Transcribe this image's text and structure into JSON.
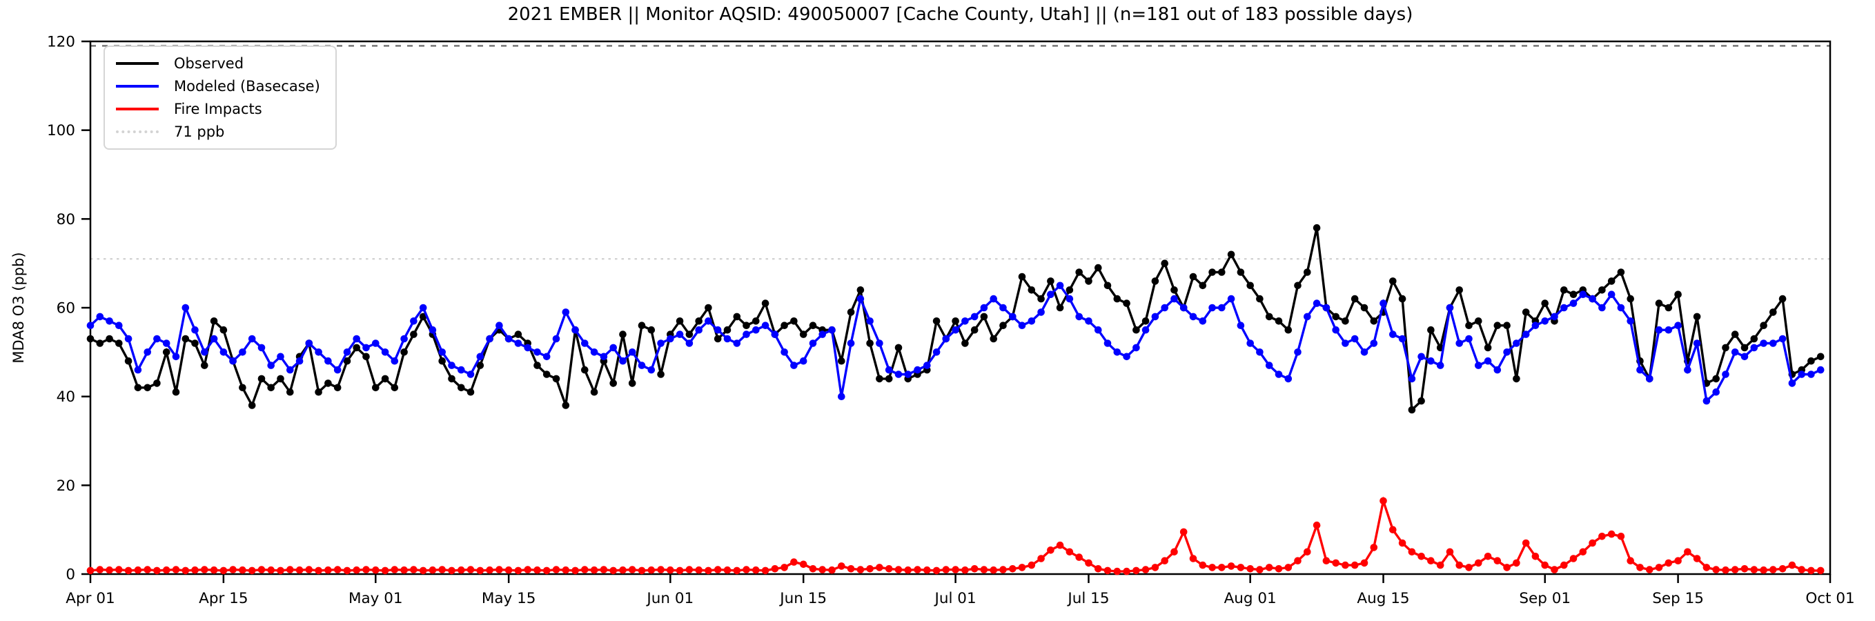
{
  "chart_data": {
    "type": "line",
    "title": "2021 EMBER || Monitor AQSID: 490050007 [Cache County, Utah] || (n=181 out of 183 possible days)",
    "ylabel": "MDA8 O3 (ppb)",
    "xlabel": "",
    "ylim": [
      0,
      120
    ],
    "y_ticks": [
      0,
      20,
      40,
      60,
      80,
      100,
      120
    ],
    "x_start": "Apr 01",
    "x_end": "Oct 01",
    "x_total_days": 183,
    "x_ticks": [
      {
        "day": 0,
        "label": "Apr 01"
      },
      {
        "day": 14,
        "label": "Apr 15"
      },
      {
        "day": 30,
        "label": "May 01"
      },
      {
        "day": 44,
        "label": "May 15"
      },
      {
        "day": 61,
        "label": "Jun 01"
      },
      {
        "day": 75,
        "label": "Jun 15"
      },
      {
        "day": 91,
        "label": "Jul 01"
      },
      {
        "day": 105,
        "label": "Jul 15"
      },
      {
        "day": 122,
        "label": "Aug 01"
      },
      {
        "day": 136,
        "label": "Aug 15"
      },
      {
        "day": 153,
        "label": "Sep 01"
      },
      {
        "day": 167,
        "label": "Sep 15"
      },
      {
        "day": 183,
        "label": "Oct 01"
      }
    ],
    "grid": false,
    "legend_position": "top-left",
    "reference_lines": [
      {
        "label": "71 ppb",
        "value": 71,
        "color": "#d3d3d3",
        "style": "dotted"
      },
      {
        "label": "",
        "value": 119,
        "color": "#6e6e6e",
        "style": "dashed"
      }
    ],
    "series": [
      {
        "name": "Observed",
        "color": "#000000",
        "values": [
          53,
          52,
          53,
          52,
          48,
          42,
          42,
          43,
          50,
          41,
          53,
          52,
          47,
          57,
          55,
          48,
          42,
          38,
          44,
          42,
          44,
          41,
          49,
          52,
          41,
          43,
          42,
          48,
          51,
          49,
          42,
          44,
          42,
          50,
          54,
          58,
          54,
          48,
          44,
          42,
          41,
          47,
          53,
          55,
          53,
          54,
          52,
          47,
          45,
          44,
          38,
          55,
          46,
          41,
          48,
          43,
          54,
          43,
          56,
          55,
          45,
          54,
          57,
          54,
          57,
          60,
          53,
          55,
          58,
          56,
          57,
          61,
          54,
          56,
          57,
          54,
          56,
          55,
          55,
          48,
          59,
          64,
          52,
          44,
          44,
          51,
          44,
          45,
          46,
          57,
          53,
          57,
          52,
          55,
          58,
          53,
          56,
          58,
          67,
          64,
          62,
          66,
          60,
          64,
          68,
          66,
          69,
          65,
          62,
          61,
          55,
          57,
          66,
          70,
          64,
          60,
          67,
          65,
          68,
          68,
          72,
          68,
          65,
          62,
          58,
          57,
          55,
          65,
          68,
          78,
          60,
          58,
          57,
          62,
          60,
          57,
          59,
          66,
          62,
          37,
          39,
          55,
          51,
          60,
          64,
          56,
          57,
          51,
          56,
          56,
          44,
          59,
          57,
          61,
          57,
          64,
          63,
          64,
          62,
          64,
          66,
          68,
          62,
          48,
          44,
          61,
          60,
          63,
          48,
          58,
          43,
          44,
          51,
          54,
          51,
          53,
          56,
          59,
          62,
          45,
          46,
          48,
          49
        ]
      },
      {
        "name": "Modeled (Basecase)",
        "color": "#0000ff",
        "values": [
          56,
          58,
          57,
          56,
          53,
          46,
          50,
          53,
          52,
          49,
          60,
          55,
          50,
          53,
          50,
          48,
          50,
          53,
          51,
          47,
          49,
          46,
          48,
          52,
          50,
          48,
          46,
          50,
          53,
          51,
          52,
          50,
          48,
          53,
          57,
          60,
          55,
          50,
          47,
          46,
          45,
          49,
          53,
          56,
          53,
          52,
          51,
          50,
          49,
          53,
          59,
          55,
          52,
          50,
          49,
          51,
          48,
          50,
          47,
          46,
          52,
          53,
          54,
          52,
          55,
          57,
          55,
          53,
          52,
          54,
          55,
          56,
          54,
          50,
          47,
          48,
          52,
          54,
          55,
          40,
          52,
          62,
          57,
          52,
          46,
          45,
          45,
          46,
          47,
          50,
          53,
          55,
          57,
          58,
          60,
          62,
          60,
          58,
          56,
          57,
          59,
          63,
          65,
          62,
          58,
          57,
          55,
          52,
          50,
          49,
          51,
          55,
          58,
          60,
          62,
          60,
          58,
          57,
          60,
          60,
          62,
          56,
          52,
          50,
          47,
          45,
          44,
          50,
          58,
          61,
          60,
          55,
          52,
          53,
          50,
          52,
          61,
          54,
          53,
          44,
          49,
          48,
          47,
          60,
          52,
          53,
          47,
          48,
          46,
          50,
          52,
          54,
          56,
          57,
          58,
          60,
          61,
          63,
          62,
          60,
          63,
          60,
          57,
          46,
          44,
          55,
          55,
          56,
          46,
          52,
          39,
          41,
          45,
          50,
          49,
          51,
          52,
          52,
          53,
          43,
          45,
          45,
          46
        ]
      },
      {
        "name": "Fire Impacts",
        "color": "#ff0000",
        "values": [
          0.8,
          1,
          0.9,
          1,
          0.8,
          0.9,
          1,
          0.8,
          0.9,
          1,
          0.8,
          0.9,
          1,
          0.9,
          0.8,
          1,
          0.9,
          0.8,
          1,
          0.9,
          0.8,
          1,
          0.9,
          1,
          0.8,
          0.9,
          1,
          0.8,
          0.9,
          1,
          0.9,
          0.8,
          1,
          0.9,
          1,
          0.8,
          0.9,
          1,
          0.8,
          0.9,
          1,
          0.8,
          0.9,
          1,
          0.9,
          0.8,
          1,
          0.9,
          0.8,
          1,
          0.9,
          0.8,
          1,
          0.9,
          1,
          0.8,
          0.9,
          1,
          0.8,
          0.9,
          1,
          0.9,
          0.8,
          1,
          0.9,
          0.8,
          1,
          0.9,
          0.8,
          1,
          0.9,
          0.8,
          1.2,
          1.5,
          2.7,
          2.2,
          1.2,
          1,
          0.9,
          1.8,
          1.2,
          1,
          1.2,
          1.5,
          1.2,
          1,
          0.9,
          1,
          0.9,
          0.8,
          1,
          1,
          0.9,
          1.2,
          1,
          0.9,
          1,
          1.2,
          1.5,
          2,
          3.5,
          5.4,
          6.5,
          5,
          3.8,
          2.5,
          1.2,
          0.8,
          0.6,
          0.6,
          0.8,
          1,
          1.5,
          3,
          5,
          9.5,
          3.5,
          2,
          1.5,
          1.5,
          1.8,
          1.5,
          1.2,
          1,
          1.5,
          1.2,
          1.5,
          3,
          5,
          11,
          3,
          2.5,
          2,
          2,
          2.5,
          6,
          16.5,
          10,
          7,
          5,
          4,
          3,
          2,
          5,
          2,
          1.5,
          2.5,
          4,
          3,
          1.5,
          2.5,
          7,
          4,
          2,
          1,
          2,
          3.5,
          5,
          7,
          8.5,
          9,
          8.5,
          3,
          1.5,
          1,
          1.5,
          2.5,
          3,
          5,
          3.5,
          1.5,
          1,
          0.9,
          1,
          1.2,
          1,
          0.9,
          1,
          1.2,
          2,
          1,
          0.8,
          0.8
        ]
      }
    ]
  }
}
